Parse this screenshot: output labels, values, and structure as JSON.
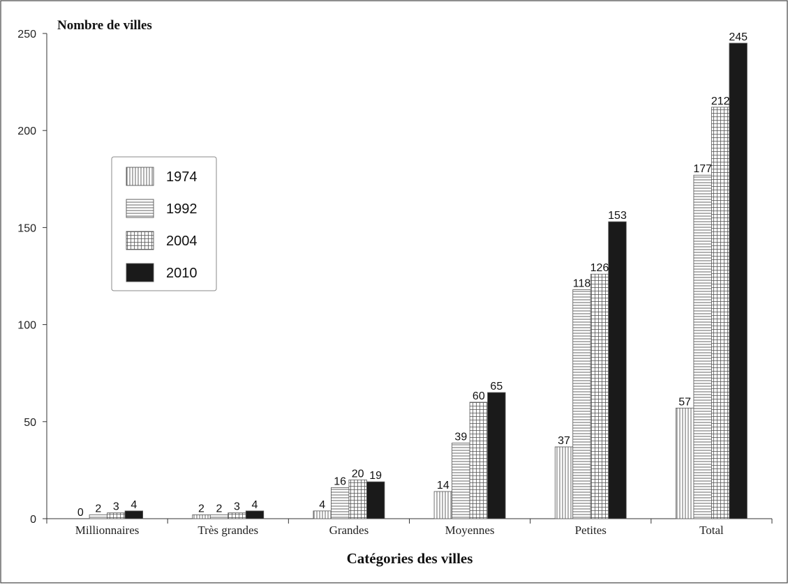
{
  "chart_data": {
    "type": "bar",
    "ylabel": "Nombre de villes",
    "xlabel": "Catégories des villes",
    "categories": [
      "Millionnaires",
      "Très grandes",
      "Grandes",
      "Moyennes",
      "Petites",
      "Total"
    ],
    "series": [
      {
        "name": "1974",
        "values": [
          0,
          2,
          4,
          14,
          37,
          57
        ],
        "pattern": "vertical-lines"
      },
      {
        "name": "1992",
        "values": [
          2,
          2,
          16,
          39,
          118,
          177
        ],
        "pattern": "horizontal-lines"
      },
      {
        "name": "2004",
        "values": [
          3,
          3,
          20,
          60,
          126,
          212
        ],
        "pattern": "grid"
      },
      {
        "name": "2010",
        "values": [
          4,
          4,
          19,
          65,
          153,
          245
        ],
        "pattern": "solid"
      }
    ],
    "ylim": [
      0,
      250
    ],
    "yticks": [
      0,
      50,
      100,
      150,
      200,
      250
    ],
    "grid": false,
    "legend_position": "left",
    "colors": {
      "solid": "#1a1a1a",
      "line": "#555555",
      "frame": "#444444"
    }
  }
}
